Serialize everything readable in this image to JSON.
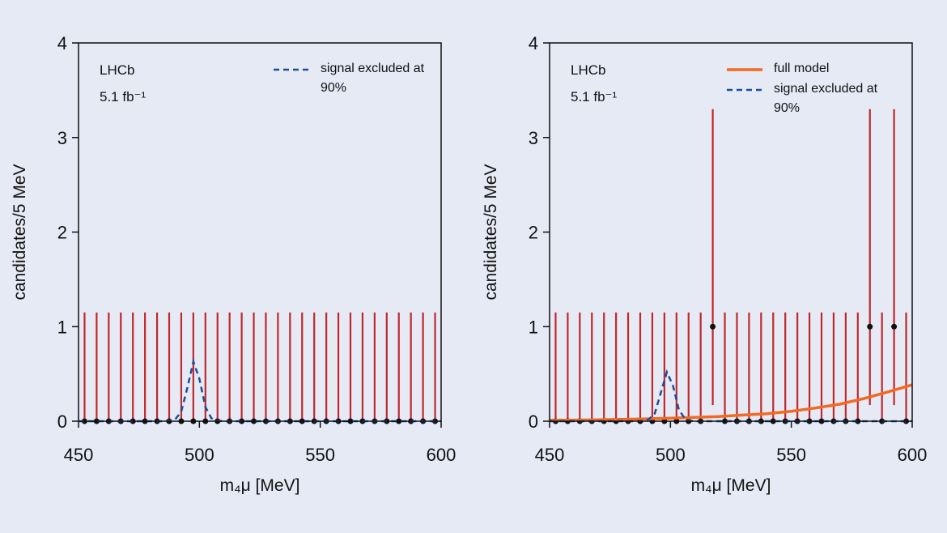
{
  "chart_data": [
    {
      "type": "errorbar",
      "experiment": "LHCb",
      "luminosity": "5.1 fb⁻¹",
      "x_label": "m₄μ [MeV]",
      "y_label": "candidates/5 MeV",
      "xlim": [
        450,
        600
      ],
      "ylim": [
        0,
        4
      ],
      "xticks": [
        450,
        500,
        550,
        600
      ],
      "yticks": [
        0,
        1,
        2,
        3,
        4
      ],
      "series": [
        {
          "type": "errorbar",
          "color": "#c0282d",
          "x": [
            452.5,
            457.5,
            462.5,
            467.5,
            472.5,
            477.5,
            482.5,
            487.5,
            492.5,
            497.5,
            502.5,
            507.5,
            512.5,
            517.5,
            522.5,
            527.5,
            532.5,
            537.5,
            542.5,
            547.5,
            552.5,
            557.5,
            562.5,
            567.5,
            572.5,
            577.5,
            582.5,
            587.5,
            592.5,
            597.5
          ],
          "values": [
            0,
            0,
            0,
            0,
            0,
            0,
            0,
            0,
            0,
            0,
            0,
            0,
            0,
            0,
            0,
            0,
            0,
            0,
            0,
            0,
            0,
            0,
            0,
            0,
            0,
            0,
            0,
            0,
            0,
            0
          ],
          "err_low": [
            0,
            0,
            0,
            0,
            0,
            0,
            0,
            0,
            0,
            0,
            0,
            0,
            0,
            0,
            0,
            0,
            0,
            0,
            0,
            0,
            0,
            0,
            0,
            0,
            0,
            0,
            0,
            0,
            0,
            0
          ],
          "err_high": [
            1.15,
            1.15,
            1.15,
            1.15,
            1.15,
            1.15,
            1.15,
            1.15,
            1.15,
            1.15,
            1.15,
            1.15,
            1.15,
            1.15,
            1.15,
            1.15,
            1.15,
            1.15,
            1.15,
            1.15,
            1.15,
            1.15,
            1.15,
            1.15,
            1.15,
            1.15,
            1.15,
            1.15,
            1.15,
            1.15
          ]
        },
        {
          "type": "line",
          "name": "signal excluded at 90%",
          "color": "#1f4e96",
          "dashed": true,
          "x": [
            450,
            485,
            487.5,
            490,
            492.5,
            495,
            497.5,
            500,
            502.5,
            505,
            507.5,
            510,
            600
          ],
          "values": [
            0,
            0,
            0.005,
            0.02,
            0.1,
            0.35,
            0.63,
            0.45,
            0.15,
            0.03,
            0.005,
            0,
            0
          ]
        }
      ]
    },
    {
      "type": "errorbar",
      "experiment": "LHCb",
      "luminosity": "5.1 fb⁻¹",
      "x_label": "m₄μ [MeV]",
      "y_label": "candidates/5 MeV",
      "xlim": [
        450,
        600
      ],
      "ylim": [
        0,
        4
      ],
      "xticks": [
        450,
        500,
        550,
        600
      ],
      "yticks": [
        0,
        1,
        2,
        3,
        4
      ],
      "series": [
        {
          "type": "errorbar",
          "color": "#c0282d",
          "x": [
            452.5,
            457.5,
            462.5,
            467.5,
            472.5,
            477.5,
            482.5,
            487.5,
            492.5,
            497.5,
            502.5,
            507.5,
            512.5,
            517.5,
            522.5,
            527.5,
            532.5,
            537.5,
            542.5,
            547.5,
            552.5,
            557.5,
            562.5,
            567.5,
            572.5,
            577.5,
            582.5,
            587.5,
            592.5,
            597.5
          ],
          "values": [
            0,
            0,
            0,
            0,
            0,
            0,
            0,
            0,
            0,
            0,
            0,
            0,
            0,
            1,
            0,
            0,
            0,
            0,
            0,
            0,
            0,
            0,
            0,
            0,
            0,
            0,
            1,
            0,
            1,
            0
          ],
          "err_low": [
            0,
            0,
            0,
            0,
            0,
            0,
            0,
            0,
            0,
            0,
            0,
            0,
            0,
            0.83,
            0,
            0,
            0,
            0,
            0,
            0,
            0,
            0,
            0,
            0,
            0,
            0,
            0.83,
            0,
            0.83,
            0
          ],
          "err_high": [
            1.15,
            1.15,
            1.15,
            1.15,
            1.15,
            1.15,
            1.15,
            1.15,
            1.15,
            1.15,
            1.15,
            1.15,
            1.15,
            2.3,
            1.15,
            1.15,
            1.15,
            1.15,
            1.15,
            1.15,
            1.15,
            1.15,
            1.15,
            1.15,
            1.15,
            1.15,
            2.3,
            1.15,
            2.3,
            1.15
          ]
        },
        {
          "type": "line",
          "name": "full model",
          "color": "#f26a21",
          "dashed": false,
          "x": [
            450,
            460,
            470,
            480,
            490,
            500,
            510,
            520,
            530,
            540,
            550,
            560,
            570,
            580,
            590,
            600
          ],
          "values": [
            0.01,
            0.012,
            0.015,
            0.02,
            0.025,
            0.032,
            0.04,
            0.05,
            0.065,
            0.08,
            0.105,
            0.14,
            0.18,
            0.24,
            0.31,
            0.385
          ]
        },
        {
          "type": "line",
          "name": "signal excluded at 90%",
          "color": "#1f4e96",
          "dashed": true,
          "x": [
            450,
            486,
            488.5,
            491,
            493.5,
            496,
            498.5,
            501,
            503.5,
            506,
            508.5,
            511,
            600
          ],
          "values": [
            0,
            0,
            0.005,
            0.02,
            0.08,
            0.3,
            0.52,
            0.38,
            0.12,
            0.025,
            0.005,
            0,
            0
          ]
        }
      ]
    }
  ]
}
